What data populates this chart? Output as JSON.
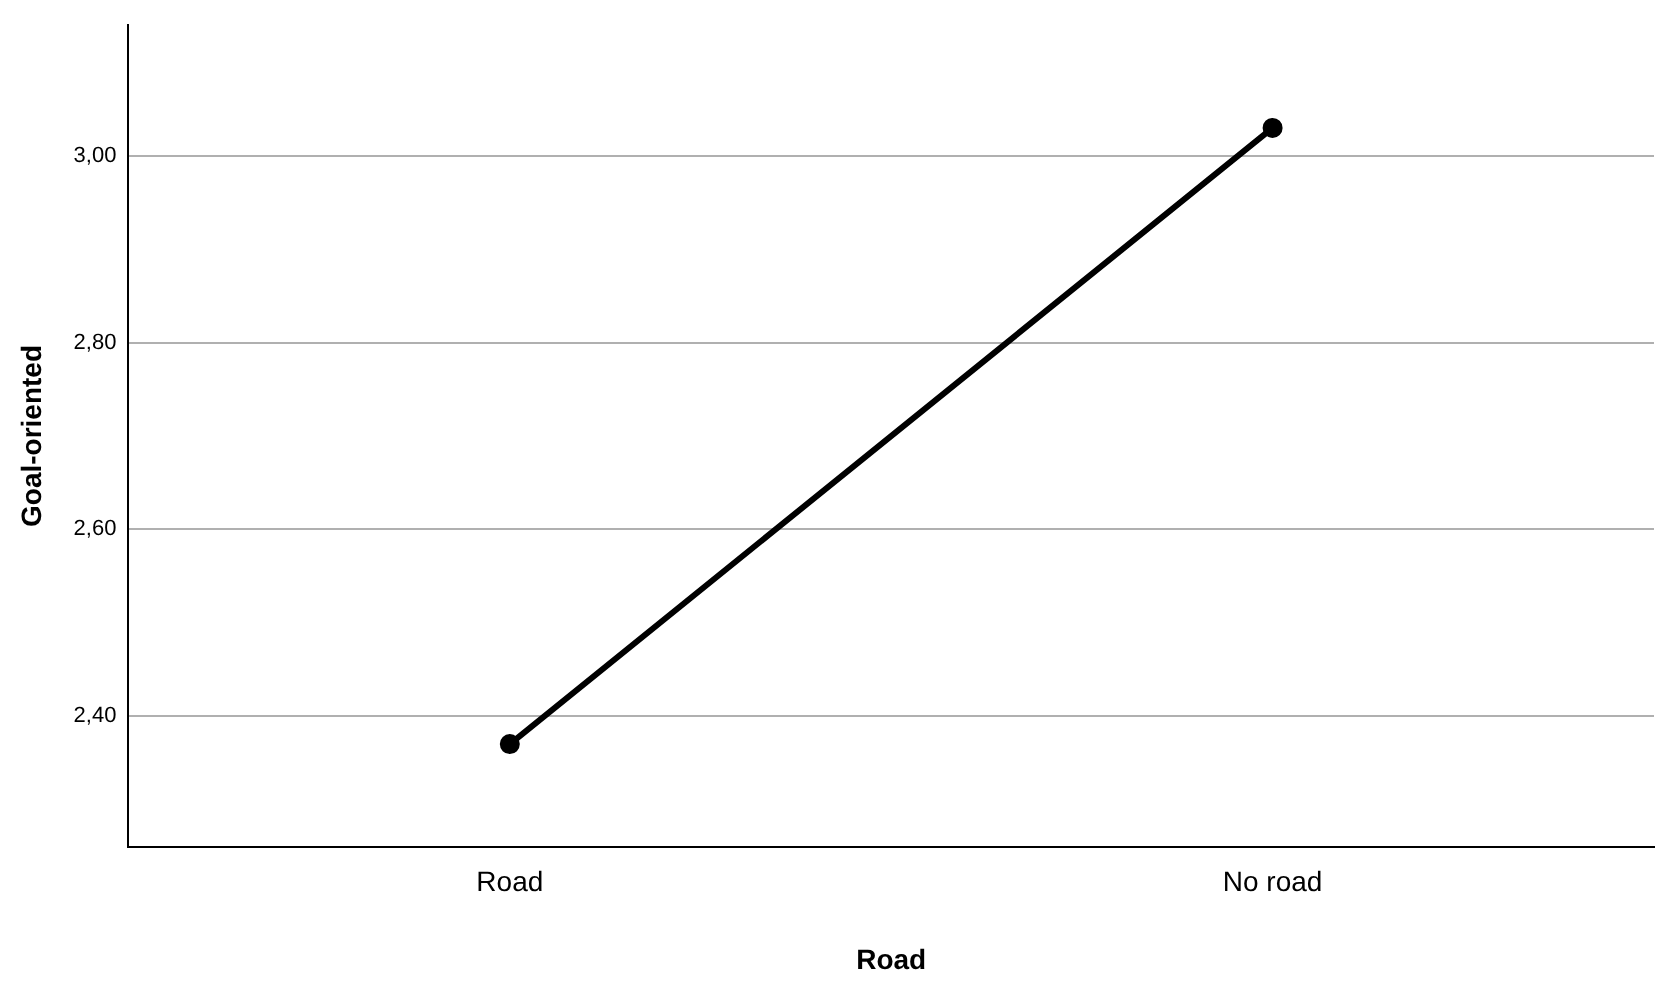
{
  "chart_data": {
    "type": "line",
    "xlabel": "Road",
    "ylabel": "Goal-oriented",
    "categories": [
      "Road",
      "No road"
    ],
    "series": [
      {
        "color": "#000000",
        "values": [
          2.37,
          3.03
        ]
      }
    ],
    "ylim": [
      2.26,
      3.14
    ],
    "yticks": [
      {
        "value": 2.4,
        "label": "2,40"
      },
      {
        "value": 2.6,
        "label": "2,60"
      },
      {
        "value": 2.8,
        "label": "2,80"
      },
      {
        "value": 3.0,
        "label": "3,00"
      }
    ],
    "grid": "y",
    "legend": false,
    "marker": "circle",
    "line_style": "solid"
  }
}
